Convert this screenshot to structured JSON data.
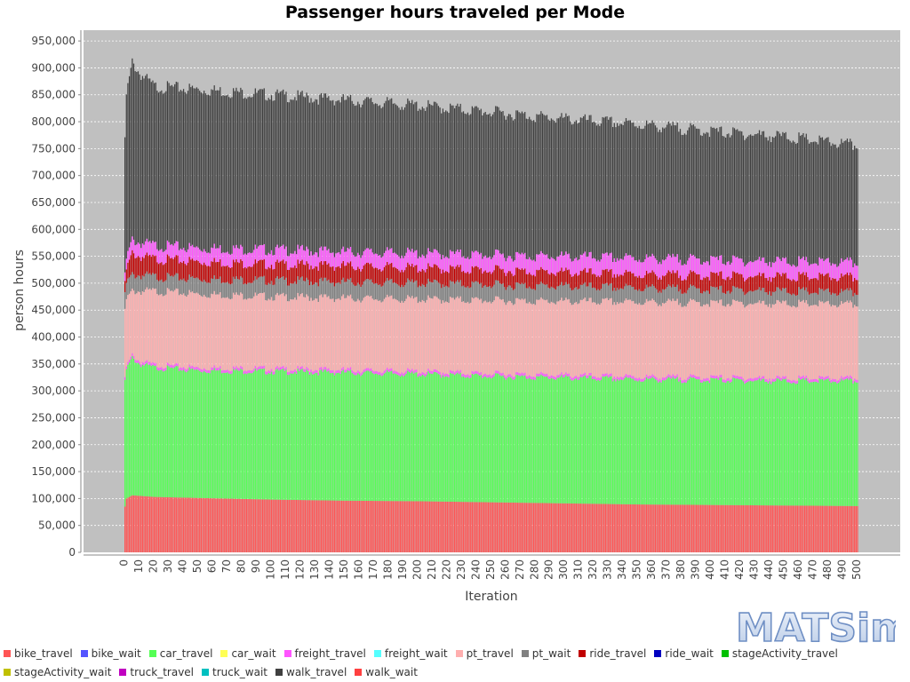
{
  "chart_data": {
    "type": "bar",
    "stacked": true,
    "title": "Passenger hours traveled per Mode",
    "xlabel": "Iteration",
    "ylabel": "person hours",
    "ylim": [
      0,
      970000
    ],
    "yticks": [
      0,
      50000,
      100000,
      150000,
      200000,
      250000,
      300000,
      350000,
      400000,
      450000,
      500000,
      550000,
      600000,
      650000,
      700000,
      750000,
      800000,
      850000,
      900000,
      950000
    ],
    "ytick_labels": [
      "0",
      "50,000",
      "100,000",
      "150,000",
      "200,000",
      "250,000",
      "300,000",
      "350,000",
      "400,000",
      "450,000",
      "500,000",
      "550,000",
      "600,000",
      "650,000",
      "700,000",
      "750,000",
      "800,000",
      "850,000",
      "900,000",
      "950,000"
    ],
    "grid": true,
    "legend_position": "bottom",
    "iterations": {
      "first": 0,
      "last": 500
    },
    "series_colors": {
      "bike_travel": "#ff5555",
      "bike_wait": "#5555ff",
      "car_travel": "#55ff55",
      "car_wait": "#ffff55",
      "freight_travel": "#ff55ff",
      "freight_wait": "#55ffff",
      "pt_travel": "#ffafaf",
      "pt_wait": "#808080",
      "ride_travel": "#c00000",
      "ride_wait": "#0000c0",
      "stageActivity_travel": "#00c000",
      "truck_travel": "#c0c000",
      "truck_wait": "#c000c0",
      "walk_travel": "#00c0c0",
      "walk_wait": "#404040",
      "stageActivity_wait": "#ff4040"
    },
    "legend": [
      {
        "label": "bike_travel",
        "color": "#ff5555"
      },
      {
        "label": "bike_wait",
        "color": "#5555ff"
      },
      {
        "label": "car_travel",
        "color": "#55ff55"
      },
      {
        "label": "car_wait",
        "color": "#ffff55"
      },
      {
        "label": "freight_travel",
        "color": "#ff55ff"
      },
      {
        "label": "freight_wait",
        "color": "#55ffff"
      },
      {
        "label": "pt_travel",
        "color": "#ffafaf"
      },
      {
        "label": "pt_wait",
        "color": "#808080"
      },
      {
        "label": "ride_travel",
        "color": "#c00000"
      },
      {
        "label": "ride_wait",
        "color": "#0000c0"
      },
      {
        "label": "stageActivity_travel",
        "color": "#00c000"
      },
      {
        "label": "stageActivity_wait",
        "color": "#c0c000"
      },
      {
        "label": "truck_travel",
        "color": "#c000c0"
      },
      {
        "label": "truck_wait",
        "color": "#00c0c0"
      },
      {
        "label": "walk_travel",
        "color": "#404040"
      },
      {
        "label": "walk_wait",
        "color": "#ff4040"
      }
    ],
    "stack_order": [
      "bike_travel",
      "car_travel",
      "freight_travel",
      "pt_travel",
      "pt_wait",
      "ride_travel",
      "freight_travel_top",
      "walk_travel"
    ],
    "series_keypoints": {
      "iteration": [
        0,
        1,
        5,
        10,
        20,
        50,
        100,
        150,
        200,
        250,
        300,
        350,
        400,
        450,
        500
      ],
      "bike_travel": [
        85000,
        100000,
        106000,
        105000,
        103000,
        101000,
        98000,
        96000,
        95000,
        93000,
        91000,
        89000,
        88000,
        87000,
        86000
      ],
      "car_travel": [
        230000,
        240000,
        255000,
        245000,
        240000,
        237000,
        238000,
        238000,
        236000,
        234000,
        233000,
        232000,
        232000,
        231000,
        232000
      ],
      "pt_travel_top": [
        445000,
        470000,
        485000,
        485000,
        485000,
        480000,
        475000,
        472000,
        470000,
        468000,
        466000,
        465000,
        463000,
        462000,
        460000
      ],
      "pt_wait_top": [
        475000,
        500000,
        515000,
        515000,
        512000,
        508000,
        505000,
        502000,
        500000,
        497000,
        494000,
        491000,
        488000,
        485000,
        482000
      ],
      "ride_travel_top": [
        495000,
        525000,
        555000,
        550000,
        545000,
        540000,
        535000,
        532000,
        528000,
        524000,
        520000,
        516000,
        514000,
        512000,
        510000
      ],
      "freight_travel_top": [
        510000,
        545000,
        580000,
        575000,
        570000,
        565000,
        562000,
        558000,
        555000,
        552000,
        549000,
        546000,
        543000,
        540000,
        537000
      ],
      "walk_travel_top": [
        760000,
        850000,
        910000,
        890000,
        865000,
        860000,
        850000,
        840000,
        830000,
        818000,
        805000,
        795000,
        782000,
        772000,
        755000
      ]
    }
  },
  "logo": {
    "text": "MATSim"
  }
}
